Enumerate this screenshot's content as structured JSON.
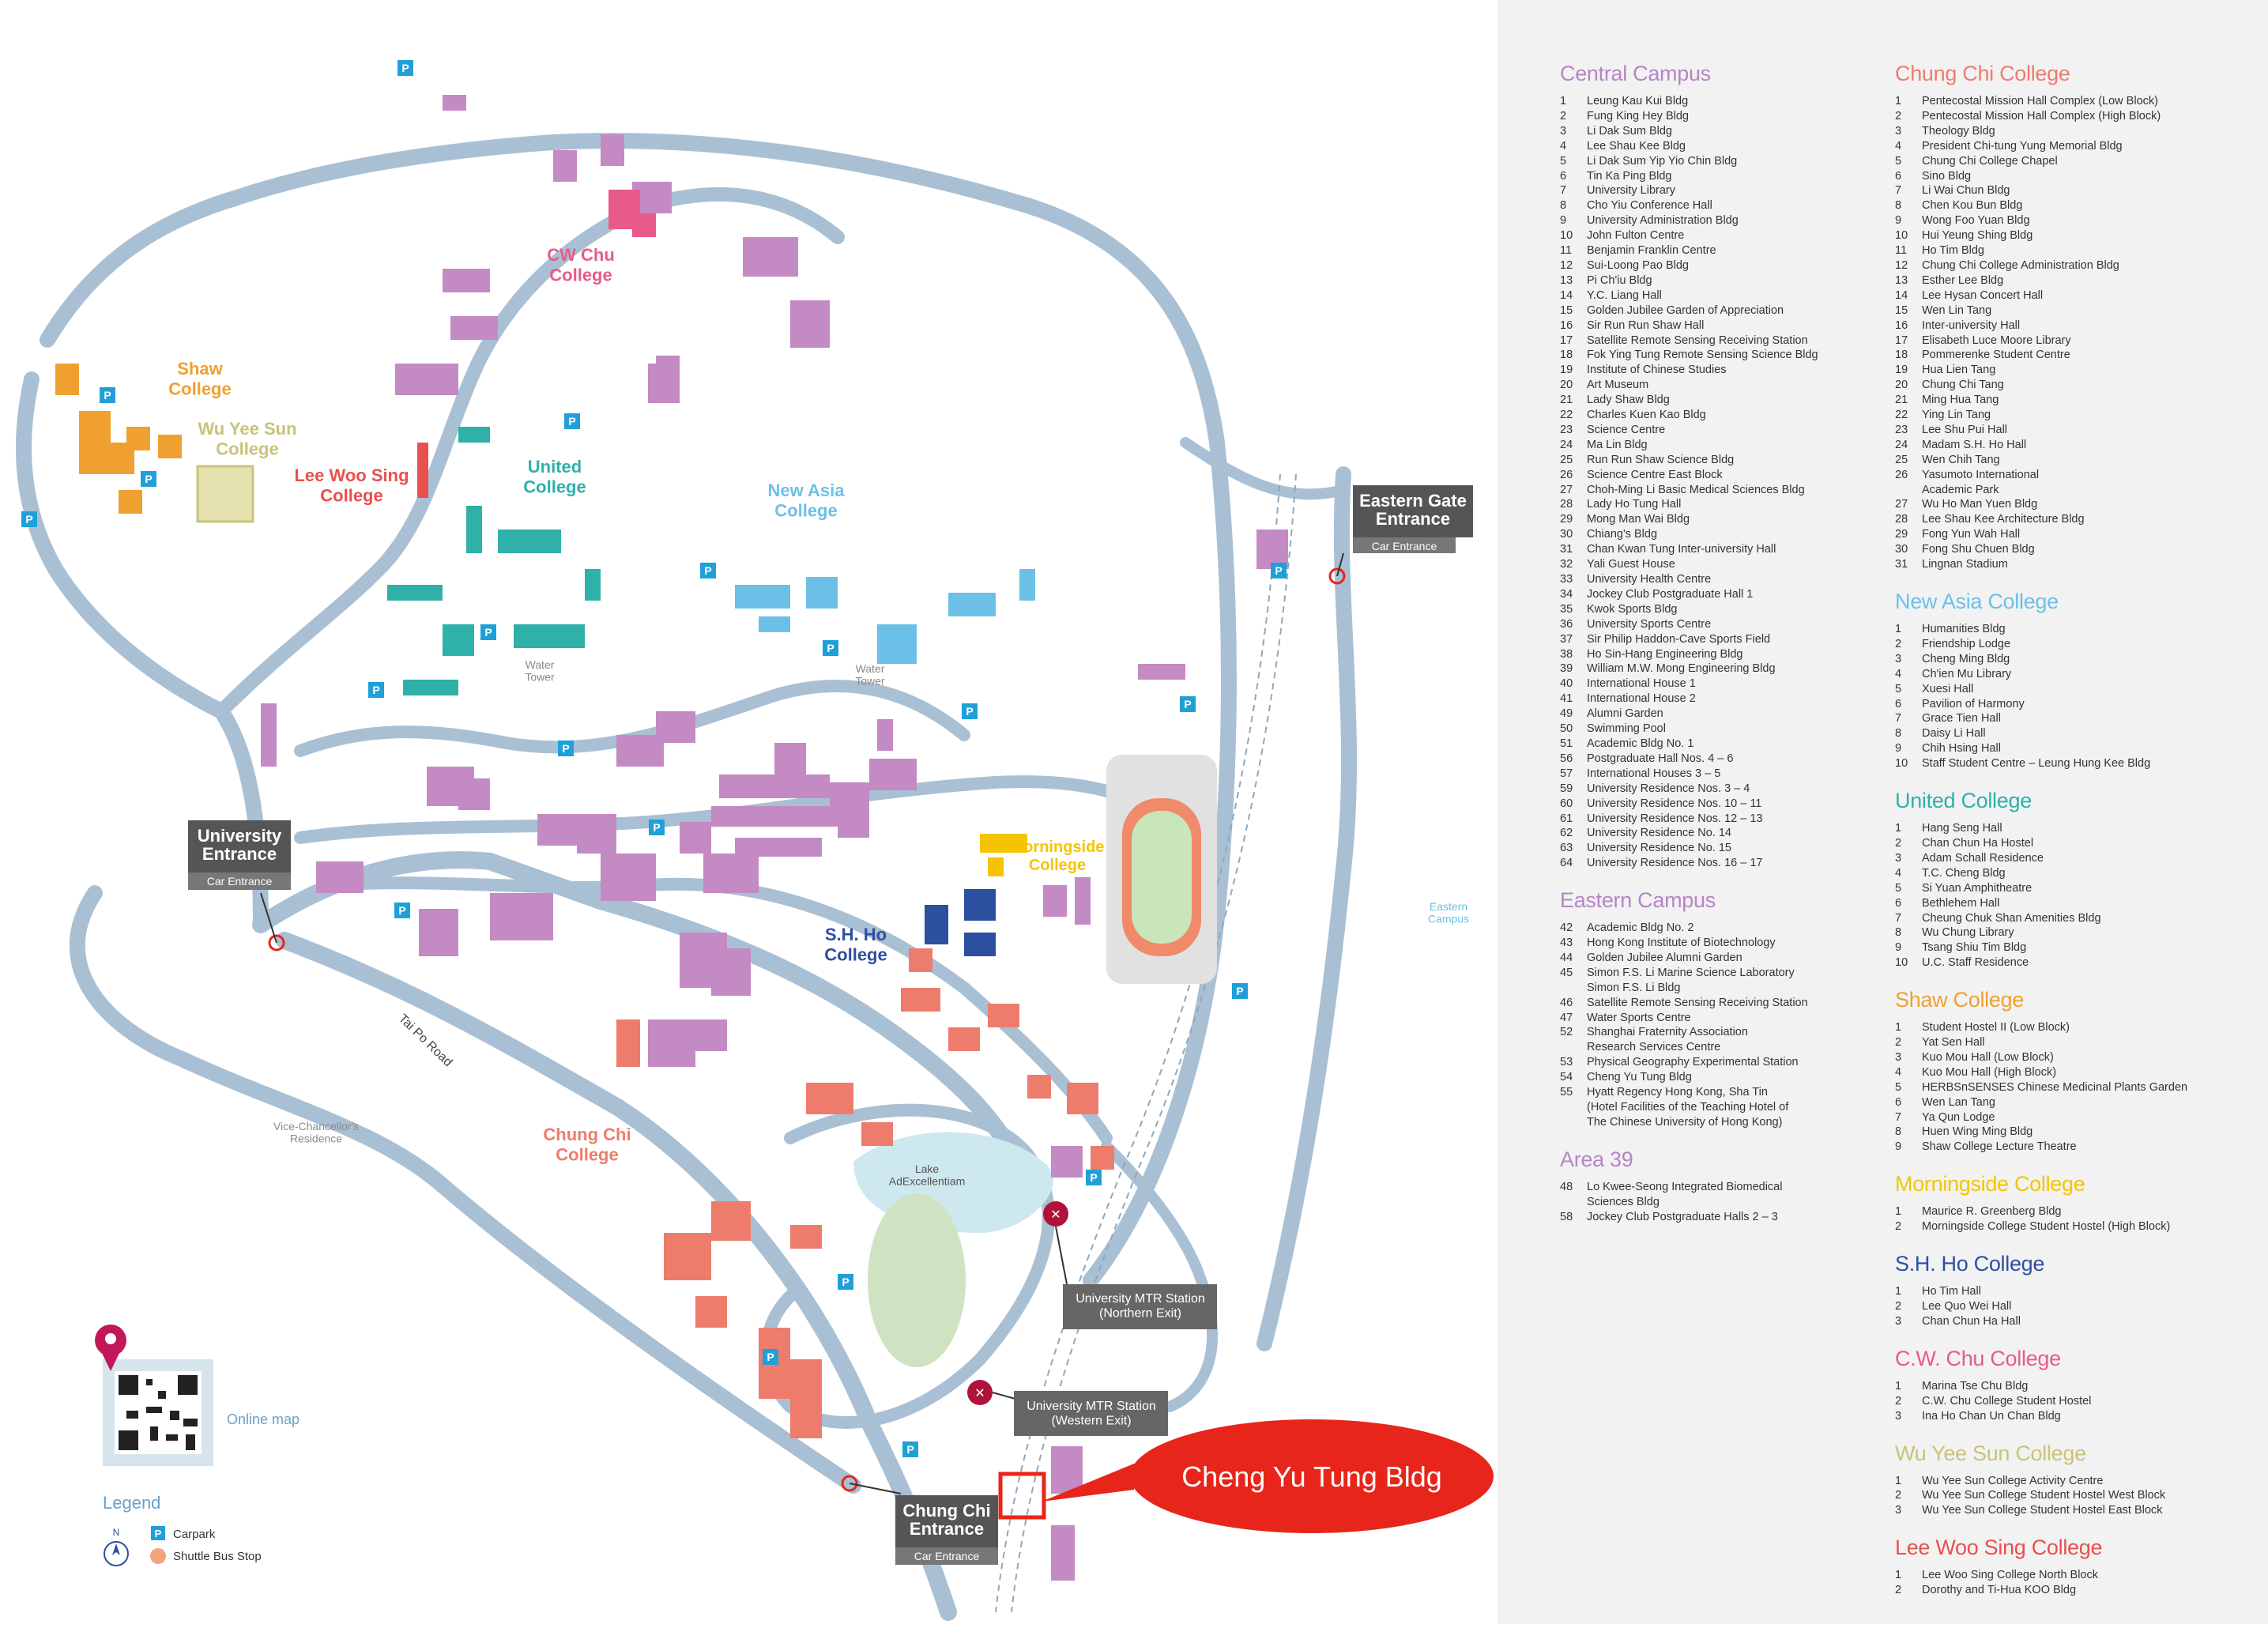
{
  "map": {
    "colleges": [
      {
        "name": "CW Chu\nCollege",
        "color": "#e85a8a"
      },
      {
        "name": "Shaw\nCollege",
        "color": "#f0a030"
      },
      {
        "name": "Wu Yee Sun\nCollege",
        "color": "#c8c478"
      },
      {
        "name": "Lee Woo Sing\nCollege",
        "color": "#e8504e"
      },
      {
        "name": "United\nCollege",
        "color": "#2fb0a8"
      },
      {
        "name": "New Asia\nCollege",
        "color": "#6cc0e8"
      },
      {
        "name": "Morningside\nCollege",
        "color": "#f5c400"
      },
      {
        "name": "S.H. Ho\nCollege",
        "color": "#2d4fa0"
      },
      {
        "name": "Chung Chi\nCollege",
        "color": "#ee7c6c"
      }
    ],
    "gates": {
      "eastern": {
        "title": "Eastern Gate\nEntrance",
        "sub": "Car Entrance"
      },
      "university": {
        "title": "University\nEntrance",
        "sub": "Car Entrance"
      },
      "chungchi": {
        "title": "Chung Chi\nEntrance",
        "sub": "Car Entrance"
      }
    },
    "stations": {
      "northern": "University MTR Station\n(Northern Exit)",
      "western": "University MTR Station\n(Western Exit)"
    },
    "labels": {
      "water_tower_1": "Water\nTower",
      "water_tower_2": "Water\nTower",
      "lake": "Lake\nAdExcellentiam",
      "road": "Tai Po Road",
      "vc_residence": "Vice-Chancellor's\nResidence",
      "eastern_campus": "Eastern\nCampus",
      "online_map": "Online  map"
    },
    "callout": "Cheng Yu Tung Bldg",
    "legend": {
      "title": "Legend",
      "carpark": "Carpark",
      "shuttle": "Shuttle Bus Stop",
      "p": "P",
      "n": "N"
    },
    "colors": {
      "road": "#a9c0d4",
      "central": "#c48ac4",
      "callout": "#e8251a",
      "sidebar_bg": "#f2f2f2"
    }
  },
  "sidebar": {
    "left": [
      {
        "title": "Central Campus",
        "color": "#b784c4",
        "items": [
          [
            "1",
            "Leung Kau Kui Bldg"
          ],
          [
            "2",
            "Fung King Hey Bldg"
          ],
          [
            "3",
            "Li Dak Sum Bldg"
          ],
          [
            "4",
            "Lee Shau Kee Bldg"
          ],
          [
            "5",
            "Li Dak Sum Yip Yio Chin Bldg"
          ],
          [
            "6",
            "Tin Ka Ping Bldg"
          ],
          [
            "7",
            "University Library"
          ],
          [
            "8",
            "Cho Yiu Conference Hall"
          ],
          [
            "9",
            "University Administration Bldg"
          ],
          [
            "10",
            "John Fulton Centre"
          ],
          [
            "11",
            "Benjamin Franklin Centre"
          ],
          [
            "12",
            "Sui-Loong Pao Bldg"
          ],
          [
            "13",
            "Pi Ch'iu Bldg"
          ],
          [
            "14",
            "Y.C. Liang Hall"
          ],
          [
            "15",
            "Golden Jubilee Garden of Appreciation"
          ],
          [
            "16",
            "Sir Run Run Shaw Hall"
          ],
          [
            "17",
            "Satellite Remote Sensing Receiving Station"
          ],
          [
            "18",
            "Fok Ying Tung Remote Sensing Science Bldg"
          ],
          [
            "19",
            "Institute of Chinese Studies"
          ],
          [
            "20",
            "Art Museum"
          ],
          [
            "21",
            "Lady Shaw Bldg"
          ],
          [
            "22",
            "Charles Kuen Kao Bldg"
          ],
          [
            "23",
            "Science Centre"
          ],
          [
            "24",
            "Ma Lin Bldg"
          ],
          [
            "25",
            "Run Run Shaw Science Bldg"
          ],
          [
            "26",
            "Science Centre East Block"
          ],
          [
            "27",
            "Choh-Ming Li Basic Medical Sciences Bldg"
          ],
          [
            "28",
            "Lady Ho Tung Hall"
          ],
          [
            "29",
            "Mong Man Wai Bldg"
          ],
          [
            "30",
            "Chiang's Bldg"
          ],
          [
            "31",
            "Chan Kwan Tung Inter-university Hall"
          ],
          [
            "32",
            "Yali Guest House"
          ],
          [
            "33",
            "University Health Centre"
          ],
          [
            "34",
            "Jockey Club Postgraduate Hall 1"
          ],
          [
            "35",
            "Kwok Sports Bldg"
          ],
          [
            "36",
            "University Sports Centre"
          ],
          [
            "37",
            "Sir Philip Haddon-Cave Sports Field"
          ],
          [
            "38",
            "Ho Sin-Hang Engineering Bldg"
          ],
          [
            "39",
            "William M.W. Mong Engineering Bldg"
          ],
          [
            "40",
            "International House 1"
          ],
          [
            "41",
            "International House 2"
          ],
          [
            "49",
            "Alumni Garden"
          ],
          [
            "50",
            "Swimming Pool"
          ],
          [
            "51",
            "Academic Bldg No. 1"
          ],
          [
            "56",
            "Postgraduate Hall Nos. 4 – 6"
          ],
          [
            "57",
            "International Houses 3 – 5"
          ],
          [
            "59",
            "University Residence Nos. 3 – 4"
          ],
          [
            "60",
            "University Residence Nos. 10 – 11"
          ],
          [
            "61",
            "University Residence Nos. 12 – 13"
          ],
          [
            "62",
            "University Residence No. 14"
          ],
          [
            "63",
            "University Residence No. 15"
          ],
          [
            "64",
            "University Residence Nos. 16 – 17"
          ]
        ]
      },
      {
        "title": "Eastern Campus",
        "color": "#b784c4",
        "items": [
          [
            "42",
            "Academic Bldg No. 2"
          ],
          [
            "43",
            "Hong Kong Institute of Biotechnology"
          ],
          [
            "44",
            "Golden Jubilee Alumni Garden"
          ],
          [
            "45",
            "Simon F.S. Li Marine Science Laboratory"
          ],
          [
            "",
            "Simon F.S. Li Bldg"
          ],
          [
            "46",
            "Satellite Remote Sensing Receiving Station"
          ],
          [
            "47",
            "Water Sports Centre"
          ],
          [
            "52",
            "Shanghai Fraternity Association"
          ],
          [
            "",
            "Research Services Centre"
          ],
          [
            "53",
            "Physical Geography Experimental Station"
          ],
          [
            "54",
            "Cheng Yu Tung Bldg"
          ],
          [
            "55",
            "Hyatt Regency Hong Kong, Sha Tin"
          ],
          [
            "",
            "(Hotel Facilities of the Teaching Hotel of"
          ],
          [
            "",
            "The Chinese University of Hong Kong)"
          ]
        ]
      },
      {
        "title": "Area 39",
        "color": "#b784c4",
        "items": [
          [
            "48",
            "Lo Kwee-Seong Integrated Biomedical"
          ],
          [
            "",
            "Sciences Bldg"
          ],
          [
            "58",
            "Jockey Club Postgraduate Halls 2 – 3"
          ]
        ]
      }
    ],
    "right": [
      {
        "title": "Chung Chi College",
        "color": "#ee7c6c",
        "items": [
          [
            "1",
            "Pentecostal Mission Hall Complex (Low Block)"
          ],
          [
            "2",
            "Pentecostal Mission Hall Complex (High Block)"
          ],
          [
            "3",
            "Theology Bldg"
          ],
          [
            "4",
            "President Chi-tung Yung Memorial Bldg"
          ],
          [
            "5",
            "Chung Chi College Chapel"
          ],
          [
            "6",
            "Sino Bldg"
          ],
          [
            "7",
            "Li Wai Chun Bldg"
          ],
          [
            "8",
            "Chen Kou Bun Bldg"
          ],
          [
            "9",
            "Wong Foo Yuan Bldg"
          ],
          [
            "10",
            "Hui Yeung Shing Bldg"
          ],
          [
            "11",
            "Ho Tim Bldg"
          ],
          [
            "12",
            "Chung Chi College Administration Bldg"
          ],
          [
            "13",
            "Esther Lee Bldg"
          ],
          [
            "14",
            "Lee Hysan Concert Hall"
          ],
          [
            "15",
            "Wen Lin Tang"
          ],
          [
            "16",
            "Inter-university Hall"
          ],
          [
            "17",
            "Elisabeth Luce Moore Library"
          ],
          [
            "18",
            "Pommerenke Student Centre"
          ],
          [
            "19",
            "Hua Lien Tang"
          ],
          [
            "20",
            "Chung Chi Tang"
          ],
          [
            "21",
            "Ming Hua Tang"
          ],
          [
            "22",
            "Ying Lin Tang"
          ],
          [
            "23",
            "Lee Shu Pui Hall"
          ],
          [
            "24",
            "Madam S.H. Ho Hall"
          ],
          [
            "25",
            "Wen Chih Tang"
          ],
          [
            "26",
            "Yasumoto International"
          ],
          [
            "",
            "Academic Park"
          ],
          [
            "27",
            "Wu Ho Man Yuen Bldg"
          ],
          [
            "28",
            "Lee Shau Kee Architecture Bldg"
          ],
          [
            "29",
            "Fong Yun Wah Hall"
          ],
          [
            "30",
            "Fong Shu Chuen Bldg"
          ],
          [
            "31",
            "Lingnan Stadium"
          ]
        ]
      },
      {
        "title": "New Asia College",
        "color": "#6cc0e8",
        "items": [
          [
            "1",
            "Humanities Bldg"
          ],
          [
            "2",
            "Friendship Lodge"
          ],
          [
            "3",
            "Cheng Ming Bldg"
          ],
          [
            "4",
            "Ch'ien Mu Library"
          ],
          [
            "5",
            "Xuesi Hall"
          ],
          [
            "6",
            "Pavilion of Harmony"
          ],
          [
            "7",
            "Grace Tien Hall"
          ],
          [
            "8",
            "Daisy Li Hall"
          ],
          [
            "9",
            "Chih Hsing Hall"
          ],
          [
            "10",
            "Staff Student Centre – Leung Hung Kee Bldg"
          ]
        ]
      },
      {
        "title": "United College",
        "color": "#2fb0a8",
        "items": [
          [
            "1",
            "Hang Seng Hall"
          ],
          [
            "2",
            "Chan Chun Ha Hostel"
          ],
          [
            "3",
            "Adam Schall Residence"
          ],
          [
            "4",
            "T.C. Cheng Bldg"
          ],
          [
            "5",
            "Si Yuan Amphitheatre"
          ],
          [
            "6",
            "Bethlehem Hall"
          ],
          [
            "7",
            "Cheung Chuk Shan Amenities Bldg"
          ],
          [
            "8",
            "Wu Chung Library"
          ],
          [
            "9",
            "Tsang Shiu Tim Bldg"
          ],
          [
            "10",
            "U.C. Staff Residence"
          ]
        ]
      },
      {
        "title": "Shaw College",
        "color": "#f0a030",
        "items": [
          [
            "1",
            "Student Hostel II (Low Block)"
          ],
          [
            "2",
            "Yat Sen Hall"
          ],
          [
            "3",
            "Kuo Mou Hall (Low Block)"
          ],
          [
            "4",
            "Kuo Mou Hall (High Block)"
          ],
          [
            "5",
            "HERBSnSENSES Chinese Medicinal Plants Garden"
          ],
          [
            "6",
            "Wen Lan Tang"
          ],
          [
            "7",
            "Ya Qun Lodge"
          ],
          [
            "8",
            "Huen Wing Ming Bldg"
          ],
          [
            "9",
            "Shaw College Lecture Theatre"
          ]
        ]
      },
      {
        "title": "Morningside College",
        "color": "#f5c400",
        "items": [
          [
            "1",
            "Maurice R. Greenberg Bldg"
          ],
          [
            "2",
            "Morningside College Student Hostel (High Block)"
          ]
        ]
      },
      {
        "title": "S.H. Ho College",
        "color": "#2d4fa0",
        "items": [
          [
            "1",
            "Ho Tim Hall"
          ],
          [
            "2",
            "Lee Quo Wei Hall"
          ],
          [
            "3",
            "Chan Chun Ha Hall"
          ]
        ]
      },
      {
        "title": "C.W. Chu College",
        "color": "#e85a8a",
        "items": [
          [
            "1",
            "Marina Tse Chu Bldg"
          ],
          [
            "2",
            "C.W. Chu College Student Hostel"
          ],
          [
            "3",
            "Ina Ho Chan Un Chan Bldg"
          ]
        ]
      },
      {
        "title": "Wu Yee Sun College",
        "color": "#c8c478",
        "items": [
          [
            "1",
            "Wu Yee Sun College Activity Centre"
          ],
          [
            "2",
            "Wu Yee Sun College Student Hostel West Block"
          ],
          [
            "3",
            "Wu Yee Sun College Student Hostel East Block"
          ]
        ]
      },
      {
        "title": "Lee Woo Sing College",
        "color": "#e8504e",
        "items": [
          [
            "1",
            "Lee Woo Sing College North Block"
          ],
          [
            "2",
            "Dorothy and Ti-Hua KOO Bldg"
          ]
        ]
      }
    ]
  }
}
